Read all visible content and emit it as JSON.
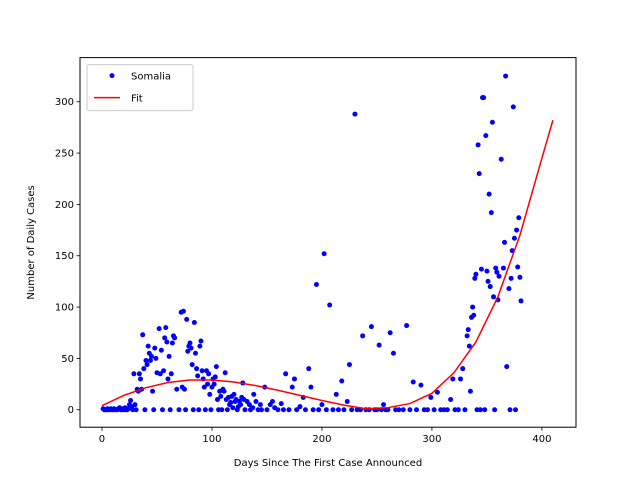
{
  "chart_data": {
    "type": "scatter",
    "title": "",
    "xlabel": "Days Since The First Case Announced",
    "ylabel": "Number of Daily Cases",
    "xlim": [
      -20,
      431
    ],
    "ylim": [
      -17,
      343
    ],
    "xticks": [
      0,
      100,
      200,
      300,
      400
    ],
    "yticks": [
      0,
      50,
      100,
      150,
      200,
      250,
      300
    ],
    "grid": false,
    "legend_position": "top-left",
    "series": [
      {
        "name": "Somalia",
        "kind": "scatter",
        "color": "#0000ff",
        "points": [
          [
            1,
            1
          ],
          [
            2,
            0
          ],
          [
            3,
            0
          ],
          [
            4,
            0
          ],
          [
            5,
            1
          ],
          [
            6,
            0
          ],
          [
            7,
            0
          ],
          [
            8,
            1
          ],
          [
            9,
            0
          ],
          [
            10,
            0
          ],
          [
            11,
            1
          ],
          [
            12,
            0
          ],
          [
            13,
            0
          ],
          [
            14,
            0
          ],
          [
            15,
            1
          ],
          [
            16,
            2
          ],
          [
            17,
            0
          ],
          [
            18,
            0
          ],
          [
            19,
            1
          ],
          [
            20,
            0
          ],
          [
            21,
            2
          ],
          [
            22,
            0
          ],
          [
            23,
            0
          ],
          [
            24,
            1
          ],
          [
            25,
            5
          ],
          [
            26,
            9
          ],
          [
            27,
            3
          ],
          [
            28,
            0
          ],
          [
            29,
            35
          ],
          [
            30,
            5
          ],
          [
            31,
            0
          ],
          [
            32,
            20
          ],
          [
            33,
            18
          ],
          [
            34,
            35
          ],
          [
            35,
            30
          ],
          [
            36,
            20
          ],
          [
            37,
            73
          ],
          [
            38,
            40
          ],
          [
            39,
            0
          ],
          [
            40,
            48
          ],
          [
            41,
            44
          ],
          [
            42,
            62
          ],
          [
            43,
            55
          ],
          [
            44,
            48
          ],
          [
            45,
            52
          ],
          [
            46,
            18
          ],
          [
            47,
            0
          ],
          [
            48,
            60
          ],
          [
            49,
            50
          ],
          [
            50,
            36
          ],
          [
            52,
            79
          ],
          [
            53,
            35
          ],
          [
            54,
            58
          ],
          [
            55,
            0
          ],
          [
            56,
            38
          ],
          [
            57,
            70
          ],
          [
            58,
            80
          ],
          [
            59,
            66
          ],
          [
            60,
            30
          ],
          [
            61,
            52
          ],
          [
            62,
            0
          ],
          [
            63,
            35
          ],
          [
            64,
            65
          ],
          [
            65,
            72
          ],
          [
            66,
            70
          ],
          [
            68,
            20
          ],
          [
            70,
            0
          ],
          [
            72,
            95
          ],
          [
            73,
            22
          ],
          [
            74,
            96
          ],
          [
            75,
            20
          ],
          [
            76,
            0
          ],
          [
            77,
            88
          ],
          [
            78,
            57
          ],
          [
            79,
            62
          ],
          [
            80,
            65
          ],
          [
            81,
            60
          ],
          [
            82,
            44
          ],
          [
            83,
            0
          ],
          [
            84,
            85
          ],
          [
            85,
            55
          ],
          [
            86,
            40
          ],
          [
            87,
            33
          ],
          [
            88,
            0
          ],
          [
            89,
            62
          ],
          [
            90,
            67
          ],
          [
            91,
            38
          ],
          [
            92,
            30
          ],
          [
            93,
            22
          ],
          [
            94,
            0
          ],
          [
            95,
            38
          ],
          [
            96,
            25
          ],
          [
            97,
            35
          ],
          [
            98,
            15
          ],
          [
            99,
            0
          ],
          [
            100,
            22
          ],
          [
            101,
            30
          ],
          [
            102,
            25
          ],
          [
            103,
            32
          ],
          [
            104,
            42
          ],
          [
            105,
            10
          ],
          [
            106,
            0
          ],
          [
            107,
            18
          ],
          [
            108,
            13
          ],
          [
            109,
            0
          ],
          [
            110,
            20
          ],
          [
            111,
            18
          ],
          [
            112,
            36
          ],
          [
            113,
            10
          ],
          [
            114,
            0
          ],
          [
            115,
            12
          ],
          [
            116,
            5
          ],
          [
            117,
            7
          ],
          [
            118,
            13
          ],
          [
            119,
            2
          ],
          [
            120,
            15
          ],
          [
            121,
            8
          ],
          [
            122,
            10
          ],
          [
            123,
            0
          ],
          [
            124,
            3
          ],
          [
            125,
            8
          ],
          [
            126,
            5
          ],
          [
            127,
            12
          ],
          [
            128,
            26
          ],
          [
            129,
            10
          ],
          [
            130,
            0
          ],
          [
            132,
            8
          ],
          [
            134,
            5
          ],
          [
            135,
            0
          ],
          [
            137,
            2
          ],
          [
            138,
            15
          ],
          [
            140,
            8
          ],
          [
            142,
            0
          ],
          [
            144,
            5
          ],
          [
            145,
            0
          ],
          [
            148,
            22
          ],
          [
            150,
            0
          ],
          [
            153,
            5
          ],
          [
            155,
            8
          ],
          [
            157,
            2
          ],
          [
            160,
            0
          ],
          [
            163,
            6
          ],
          [
            165,
            0
          ],
          [
            167,
            35
          ],
          [
            170,
            0
          ],
          [
            173,
            22
          ],
          [
            175,
            30
          ],
          [
            177,
            0
          ],
          [
            180,
            3
          ],
          [
            183,
            12
          ],
          [
            185,
            0
          ],
          [
            188,
            40
          ],
          [
            190,
            22
          ],
          [
            192,
            0
          ],
          [
            195,
            122
          ],
          [
            197,
            0
          ],
          [
            200,
            5
          ],
          [
            202,
            152
          ],
          [
            204,
            0
          ],
          [
            207,
            102
          ],
          [
            210,
            0
          ],
          [
            213,
            15
          ],
          [
            215,
            0
          ],
          [
            218,
            28
          ],
          [
            220,
            0
          ],
          [
            223,
            8
          ],
          [
            225,
            44
          ],
          [
            227,
            0
          ],
          [
            230,
            288
          ],
          [
            232,
            0
          ],
          [
            235,
            0
          ],
          [
            237,
            72
          ],
          [
            240,
            0
          ],
          [
            243,
            0
          ],
          [
            245,
            81
          ],
          [
            248,
            0
          ],
          [
            250,
            0
          ],
          [
            252,
            63
          ],
          [
            254,
            0
          ],
          [
            256,
            5
          ],
          [
            258,
            0
          ],
          [
            260,
            0
          ],
          [
            262,
            75
          ],
          [
            265,
            55
          ],
          [
            267,
            0
          ],
          [
            270,
            0
          ],
          [
            274,
            0
          ],
          [
            277,
            82
          ],
          [
            280,
            0
          ],
          [
            283,
            27
          ],
          [
            286,
            0
          ],
          [
            290,
            24
          ],
          [
            293,
            0
          ],
          [
            296,
            0
          ],
          [
            299,
            12
          ],
          [
            302,
            0
          ],
          [
            305,
            17
          ],
          [
            308,
            0
          ],
          [
            311,
            0
          ],
          [
            314,
            0
          ],
          [
            317,
            10
          ],
          [
            319,
            30
          ],
          [
            321,
            0
          ],
          [
            324,
            0
          ],
          [
            326,
            30
          ],
          [
            328,
            40
          ],
          [
            330,
            0
          ],
          [
            332,
            72
          ],
          [
            333,
            78
          ],
          [
            334,
            62
          ],
          [
            335,
            18
          ],
          [
            336,
            90
          ],
          [
            337,
            100
          ],
          [
            338,
            92
          ],
          [
            339,
            128
          ],
          [
            340,
            132
          ],
          [
            341,
            0
          ],
          [
            342,
            258
          ],
          [
            343,
            230
          ],
          [
            344,
            0
          ],
          [
            345,
            137
          ],
          [
            346,
            304
          ],
          [
            347,
            304
          ],
          [
            348,
            0
          ],
          [
            349,
            267
          ],
          [
            350,
            135
          ],
          [
            351,
            125
          ],
          [
            352,
            210
          ],
          [
            353,
            120
          ],
          [
            354,
            192
          ],
          [
            355,
            280
          ],
          [
            356,
            110
          ],
          [
            357,
            0
          ],
          [
            358,
            138
          ],
          [
            359,
            134
          ],
          [
            360,
            107
          ],
          [
            361,
            130
          ],
          [
            363,
            244
          ],
          [
            365,
            138
          ],
          [
            366,
            163
          ],
          [
            367,
            325
          ],
          [
            368,
            42
          ],
          [
            370,
            118
          ],
          [
            371,
            0
          ],
          [
            372,
            128
          ],
          [
            373,
            155
          ],
          [
            374,
            295
          ],
          [
            375,
            167
          ],
          [
            376,
            0
          ],
          [
            377,
            175
          ],
          [
            378,
            139
          ],
          [
            379,
            187
          ],
          [
            380,
            129
          ],
          [
            381,
            106
          ]
        ]
      },
      {
        "name": "Fit",
        "kind": "line",
        "color": "#ff0000",
        "x": [
          0,
          20,
          40,
          60,
          80,
          100,
          120,
          140,
          160,
          180,
          200,
          220,
          240,
          260,
          280,
          300,
          320,
          340,
          360,
          380,
          400,
          410
        ],
        "y": [
          4,
          14,
          21.5,
          26.5,
          29,
          29,
          27,
          23.5,
          19,
          14,
          9,
          4.5,
          1,
          2,
          6,
          16,
          36,
          66,
          110,
          170,
          245,
          282
        ]
      }
    ]
  }
}
